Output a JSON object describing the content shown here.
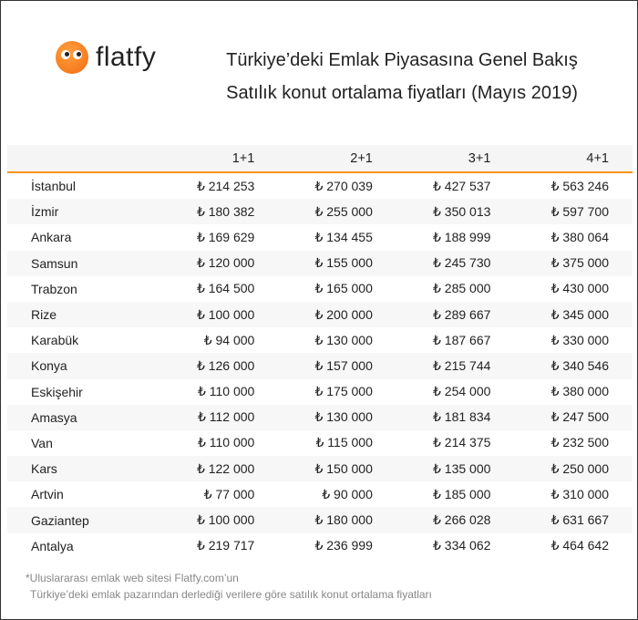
{
  "brand": {
    "name": "flatfy",
    "logo_color": "#f7941d"
  },
  "title": "Türkiye’deki Emlak Piyasasına Genel Bakış",
  "subtitle": "Satılık konut ortalama fiyatları (Mayıs 2019)",
  "accent": "#f7941d",
  "table": {
    "headers": [
      "",
      "1+1",
      "2+1",
      "3+1",
      "4+1"
    ],
    "rows": [
      [
        "İstanbul",
        "₺ 214 253",
        "₺ 270 039",
        "₺ 427 537",
        "₺ 563 246"
      ],
      [
        "İzmir",
        "₺ 180 382",
        "₺ 255 000",
        "₺ 350 013",
        "₺ 597 700"
      ],
      [
        "Ankara",
        "₺ 169 629",
        "₺ 134 455",
        "₺ 188 999",
        "₺ 380 064"
      ],
      [
        "Samsun",
        "₺ 120 000",
        "₺ 155 000",
        "₺ 245 730",
        "₺ 375 000"
      ],
      [
        "Trabzon",
        "₺ 164 500",
        "₺ 165 000",
        "₺ 285 000",
        "₺ 430 000"
      ],
      [
        "Rize",
        "₺ 100 000",
        "₺ 200 000",
        "₺ 289 667",
        "₺ 345 000"
      ],
      [
        "Karabük",
        "₺ 94 000",
        "₺ 130 000",
        "₺ 187 667",
        "₺ 330 000"
      ],
      [
        "Konya",
        "₺ 126 000",
        "₺ 157 000",
        "₺ 215 744",
        "₺ 340 546"
      ],
      [
        "Eskişehir",
        "₺ 110 000",
        "₺ 175 000",
        "₺ 254 000",
        "₺ 380 000"
      ],
      [
        "Amasya",
        "₺ 112 000",
        "₺ 130 000",
        "₺ 181 834",
        "₺ 247 500"
      ],
      [
        "Van",
        "₺ 110 000",
        "₺ 115 000",
        "₺ 214 375",
        "₺ 232 500"
      ],
      [
        "Kars",
        "₺ 122 000",
        "₺ 150 000",
        "₺ 135 000",
        "₺ 250 000"
      ],
      [
        "Artvin",
        "₺ 77 000",
        "₺ 90 000",
        "₺ 185 000",
        "₺ 310 000"
      ],
      [
        "Gaziantep",
        "₺ 100 000",
        "₺ 180 000",
        "₺ 266 028",
        "₺ 631 667"
      ],
      [
        "Antalya",
        "₺ 219 717",
        "₺ 236 999",
        "₺ 334 062",
        "₺ 464 642"
      ]
    ]
  },
  "footnote": [
    "*Uluslararası emlak web sitesi Flatfy.com’un",
    "Türkiye’deki emlak pazarından derlediği verilere göre satılık konut ortalama fiyatları"
  ]
}
